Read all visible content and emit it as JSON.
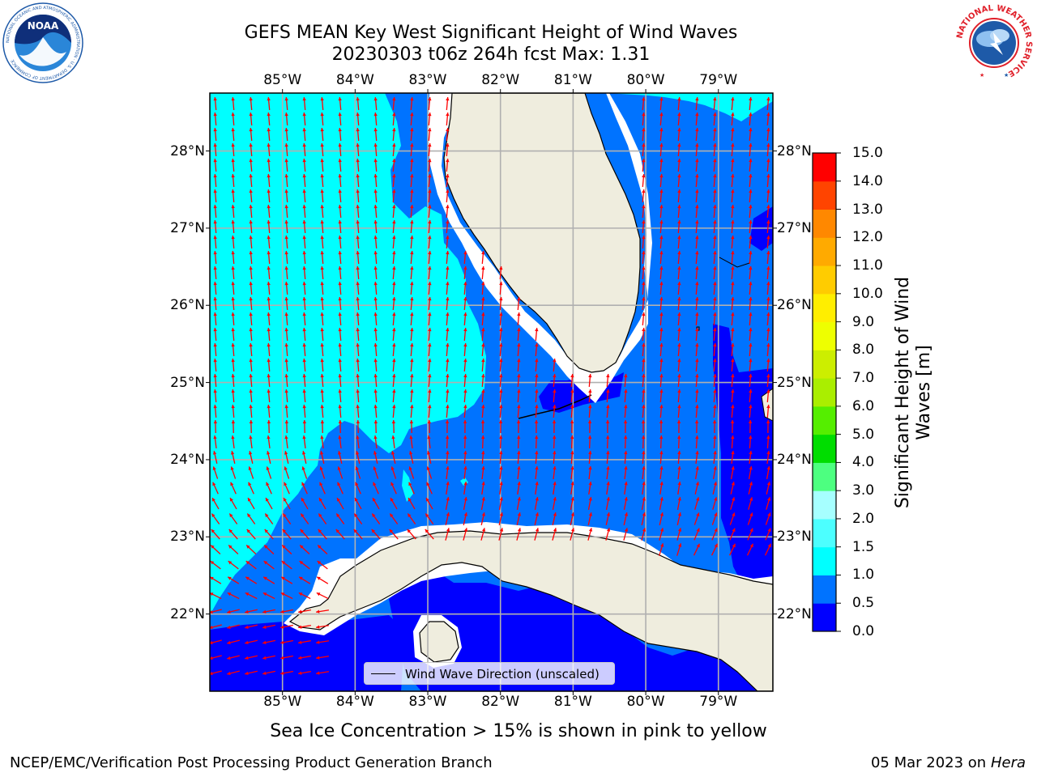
{
  "title": {
    "line1": "GEFS MEAN Key West Significant Height of Wind Waves",
    "line2": "20230303 t06z 264h fcst   Max: 1.31"
  },
  "chart_data": {
    "type": "heatmap",
    "map_extent": {
      "lon": [
        -86.0,
        -78.25
      ],
      "lat": [
        21.0,
        28.75
      ]
    },
    "lon_ticks": [
      "85°W",
      "84°W",
      "83°W",
      "82°W",
      "81°W",
      "80°W",
      "79°W"
    ],
    "lon_tick_values": [
      -85,
      -84,
      -83,
      -82,
      -81,
      -80,
      -79
    ],
    "lat_ticks": [
      "28°N",
      "27°N",
      "26°N",
      "25°N",
      "24°N",
      "23°N",
      "22°N"
    ],
    "lat_tick_values": [
      28,
      27,
      26,
      25,
      24,
      23,
      22
    ],
    "grid": true,
    "max_value": 1.31,
    "colorbar": {
      "label": "Significant Height of Wind Waves [m]",
      "ticks": [
        "15.0",
        "14.0",
        "13.0",
        "12.0",
        "11.0",
        "10.0",
        "9.0",
        "8.0",
        "7.0",
        "6.0",
        "5.0",
        "4.0",
        "3.0",
        "2.0",
        "1.5",
        "1.0",
        "0.5",
        "0.0"
      ],
      "levels": [
        0.0,
        0.5,
        1.0,
        1.5,
        2.0,
        3.0,
        4.0,
        5.0,
        6.0,
        7.0,
        8.0,
        9.0,
        10.0,
        11.0,
        12.0,
        13.0,
        14.0,
        15.0
      ],
      "colors": [
        "#0000ff",
        "#0073ff",
        "#00ffff",
        "#4cffff",
        "#a6ffff",
        "#4dff80",
        "#00dd00",
        "#55ee00",
        "#aaee00",
        "#ccee00",
        "#eeff00",
        "#ffee00",
        "#ffcc00",
        "#ffaa00",
        "#ff8800",
        "#ff4400",
        "#ff0000"
      ]
    },
    "legend": {
      "position": "bottom-center",
      "entry": "Wind Wave Direction (unscaled)"
    },
    "vector_color": "#ff0000",
    "land_color": "#efedde"
  },
  "annotation": "Sea Ice Concentration > 15% is shown in pink to yellow",
  "footer": {
    "left": "NCEP/EMC/Verification Post Processing Product Generation Branch",
    "right_date": "05 Mar 2023 on",
    "right_machine": "Hera"
  },
  "logos": {
    "noaa": {
      "text": "NOAA",
      "ring_text": "NATIONAL OCEANIC AND ATMOSPHERIC ADMINISTRATION · U.S. DEPARTMENT OF COMMERCE"
    },
    "nws": {
      "ring_text": "NATIONAL WEATHER SERVICE"
    }
  },
  "colors": {
    "ring_red": "#e0202a",
    "noaa_blue": "#1e5aa8"
  }
}
